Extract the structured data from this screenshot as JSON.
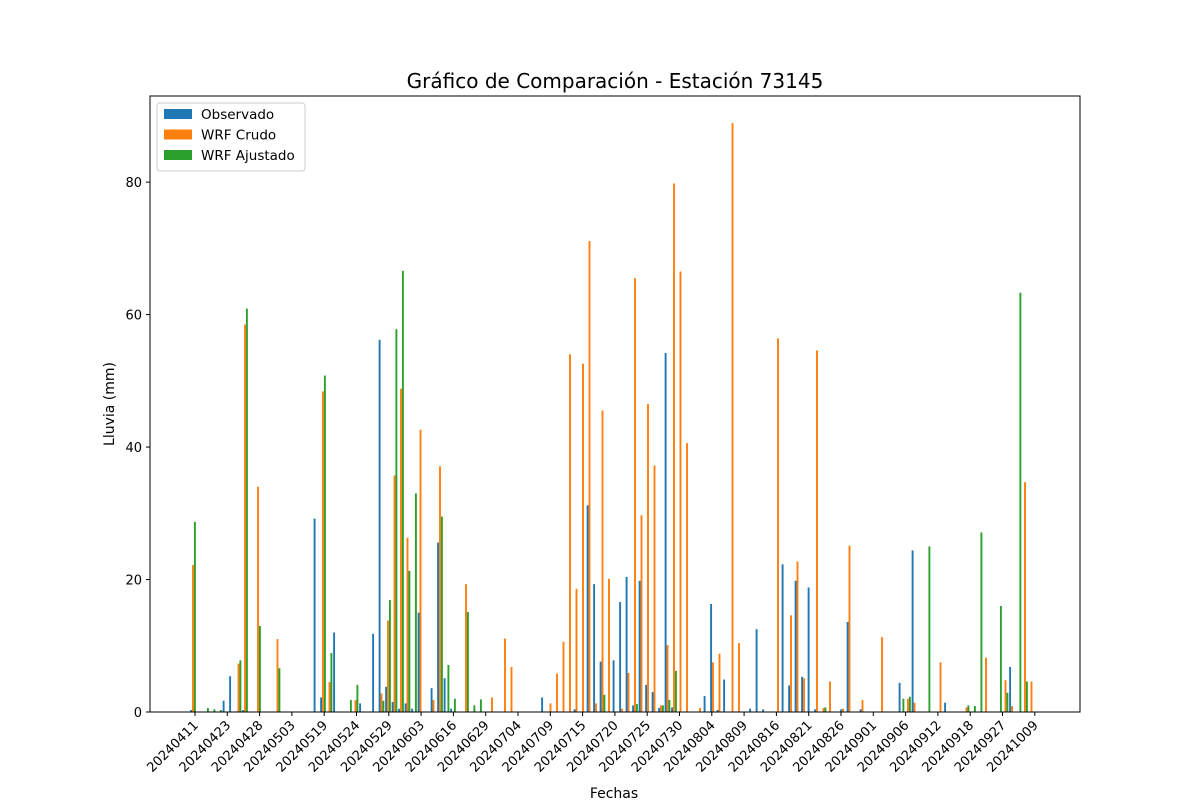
{
  "chart_data": {
    "type": "bar",
    "title": "Gráfico de Comparación - Estación 73145",
    "xlabel": "Fechas",
    "ylabel": "Lluvia (mm)",
    "ylim": [
      0,
      93
    ],
    "yticks": [
      0,
      20,
      40,
      60,
      80
    ],
    "xticks": [
      "20240411",
      "20240423",
      "20240428",
      "20240503",
      "20240519",
      "20240524",
      "20240529",
      "20240603",
      "20240616",
      "20240629",
      "20240704",
      "20240709",
      "20240715",
      "20240720",
      "20240725",
      "20240730",
      "20240804",
      "20240809",
      "20240816",
      "20240821",
      "20240826",
      "20240901",
      "20240906",
      "20240912",
      "20240918",
      "20240927",
      "20241009"
    ],
    "legend_position": "top-left",
    "grid": false,
    "series": [
      {
        "name": "Observado",
        "color": "#1f77b4",
        "values": [
          0.3,
          0,
          0,
          0,
          0,
          1.7,
          5.4,
          0.1,
          0.3,
          0,
          0,
          0,
          0,
          0,
          0,
          0,
          0,
          0,
          0,
          29.2,
          2.2,
          0,
          12.0,
          0,
          0,
          0,
          1.3,
          0,
          11.8,
          56.2,
          3.8,
          1.5,
          0.5,
          1.3,
          0.5,
          15.0,
          0,
          3.6,
          25.6,
          5.1,
          0.5,
          0,
          0,
          0,
          0,
          0,
          0,
          0,
          0,
          0,
          0,
          0,
          0,
          0,
          2.2,
          0,
          0,
          0,
          0,
          0.4,
          0,
          31.2,
          19.3,
          7.6,
          0,
          7.8,
          16.6,
          20.4,
          1.0,
          19.8,
          4.1,
          3.0,
          0.6,
          54.2,
          0.7,
          0,
          0,
          0,
          0,
          2.4,
          16.3,
          0.3,
          4.9,
          0,
          0,
          0,
          0.5,
          12.5,
          0.4,
          0,
          0,
          22.3,
          4.0,
          19.8,
          5.3,
          18.8,
          0.4,
          0,
          0,
          0,
          0.4,
          13.6,
          0,
          0.4,
          0,
          0,
          0,
          0,
          0,
          4.4,
          0,
          24.4,
          0,
          0,
          0,
          0,
          1.4,
          0,
          0,
          0,
          0,
          0,
          0,
          0,
          0,
          0,
          6.8,
          0
        ]
      },
      {
        "name": "WRF Crudo",
        "color": "#ff7f0e",
        "values": [
          22.2,
          0,
          0,
          0,
          0,
          0,
          0,
          7.3,
          58.5,
          0,
          34.0,
          0,
          0,
          11.0,
          0,
          0,
          0,
          0,
          0,
          0,
          48.4,
          4.5,
          0,
          0,
          0,
          1.8,
          0,
          0,
          0,
          2.8,
          13.8,
          35.7,
          48.8,
          26.3,
          0,
          42.6,
          0,
          1.8,
          37.1,
          0,
          0,
          0,
          19.3,
          0,
          0,
          0,
          2.2,
          0,
          11.1,
          6.8,
          0,
          0,
          0,
          0,
          0,
          1.3,
          5.8,
          10.6,
          54.0,
          18.6,
          52.6,
          71.1,
          1.3,
          45.5,
          20.1,
          0,
          0.5,
          5.9,
          65.5,
          29.7,
          46.5,
          37.2,
          1.0,
          10.1,
          79.8,
          66.5,
          40.6,
          0,
          0.6,
          0,
          7.5,
          8.8,
          0,
          88.9,
          10.4,
          0,
          0,
          0,
          0,
          0,
          56.4,
          0,
          14.6,
          22.7,
          5.1,
          0,
          54.6,
          0.6,
          4.6,
          0,
          0.5,
          25.1,
          0,
          1.8,
          0,
          0,
          11.3,
          0,
          0,
          0,
          2.0,
          1.4,
          0,
          0,
          0,
          7.5,
          0,
          0,
          0,
          0.7,
          0,
          0,
          8.2,
          0,
          0,
          4.8,
          0.9,
          0,
          34.7,
          4.6
        ]
      },
      {
        "name": "WRF Ajustado",
        "color": "#2ca02c",
        "values": [
          28.7,
          0,
          0.6,
          0.4,
          0.3,
          0,
          0,
          7.8,
          60.9,
          0,
          13.0,
          0,
          0,
          6.6,
          0,
          0,
          0,
          0,
          0,
          0,
          50.8,
          8.9,
          0,
          0,
          1.8,
          4.1,
          0,
          0,
          0,
          1.7,
          16.9,
          57.8,
          66.6,
          21.3,
          33.0,
          0,
          0,
          0,
          29.5,
          7.1,
          2.0,
          0,
          15.1,
          1.0,
          1.9,
          0,
          0,
          0,
          0,
          0,
          0,
          0,
          0,
          0,
          0,
          0,
          0,
          0,
          0,
          0,
          0,
          0,
          0,
          2.6,
          0,
          0,
          0,
          0,
          1.2,
          0,
          0,
          0,
          1.0,
          1.8,
          6.2,
          0,
          0,
          0,
          0,
          0,
          0,
          0,
          0,
          0,
          0,
          0,
          0,
          0,
          0,
          0,
          0,
          0,
          0,
          0,
          0,
          0,
          0,
          0.7,
          0,
          0,
          0,
          0,
          0,
          0,
          0,
          0,
          0,
          0,
          0,
          2.0,
          2.3,
          0,
          0,
          25.0,
          0,
          0,
          0,
          0,
          0,
          1.0,
          0.9,
          27.1,
          0,
          0,
          16.0,
          2.9,
          0,
          63.3,
          4.6
        ]
      }
    ]
  }
}
